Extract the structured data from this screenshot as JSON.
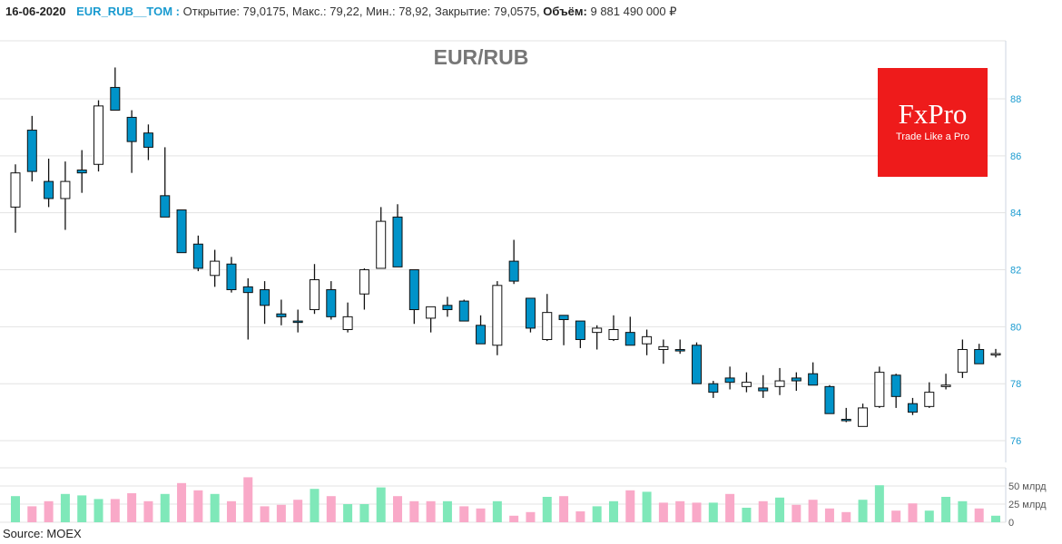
{
  "header": {
    "date": "16-06-2020",
    "symbol": "EUR_RUB__TOM :",
    "open_label": "Открытие:",
    "open": "79,0175,",
    "high_label": "Макс.:",
    "high": "79,22,",
    "low_label": "Мин.:",
    "low": "78,92,",
    "close_label": "Закрытие:",
    "close": "79,0575,",
    "volume_label": "Объём:",
    "volume": "9 881 490 000 ₽"
  },
  "logo": {
    "brand": "FxPro",
    "tagline": "Trade Like a Pro"
  },
  "source": "Source: MOEX",
  "colors": {
    "bear": "#0093c9",
    "bull": "#ffffff",
    "vol_up": "#7fe8b9",
    "vol_down": "#f9a9c8",
    "grid": "#e3e3e3",
    "axis_text": "#1a9bd0"
  },
  "chart_data": {
    "type": "candlestick",
    "title": "EUR/RUB",
    "ylim": [
      75.6,
      89.9
    ],
    "yticks": [
      {
        "v": 76,
        "label": "76"
      },
      {
        "v": 78,
        "label": "78"
      },
      {
        "v": 80,
        "label": "80"
      },
      {
        "v": 82,
        "label": "82"
      },
      {
        "v": 84,
        "label": "84"
      },
      {
        "v": 86,
        "label": "86"
      },
      {
        "v": 88,
        "label": "88"
      }
    ],
    "volume_ticks": [
      {
        "v": 0,
        "label": "0"
      },
      {
        "v": 25,
        "label": "25 млрд"
      },
      {
        "v": 50,
        "label": "50 млрд"
      }
    ],
    "volume_unit": "млрд",
    "ohlc": [
      [
        84.2,
        85.7,
        83.3,
        85.4
      ],
      [
        86.9,
        87.4,
        85.1,
        85.45
      ],
      [
        85.1,
        85.9,
        84.2,
        84.5
      ],
      [
        84.5,
        85.8,
        83.4,
        85.1
      ],
      [
        85.5,
        86.2,
        84.7,
        85.4
      ],
      [
        85.7,
        87.95,
        85.45,
        87.75
      ],
      [
        88.4,
        89.1,
        87.6,
        87.6
      ],
      [
        87.35,
        87.6,
        85.4,
        86.5
      ],
      [
        86.8,
        87.1,
        85.85,
        86.3
      ],
      [
        84.6,
        86.3,
        83.85,
        83.85
      ],
      [
        84.1,
        84.1,
        82.6,
        82.6
      ],
      [
        82.9,
        83.2,
        81.95,
        82.05
      ],
      [
        81.8,
        82.7,
        81.4,
        82.3
      ],
      [
        82.2,
        82.45,
        81.2,
        81.3
      ],
      [
        81.4,
        81.7,
        79.55,
        81.2
      ],
      [
        81.3,
        81.6,
        80.1,
        80.75
      ],
      [
        80.45,
        80.95,
        80.05,
        80.35
      ],
      [
        80.2,
        80.6,
        79.8,
        80.15
      ],
      [
        80.6,
        82.2,
        80.45,
        81.65
      ],
      [
        81.3,
        81.6,
        80.25,
        80.35
      ],
      [
        79.9,
        80.85,
        79.8,
        80.35
      ],
      [
        81.15,
        82.05,
        80.6,
        82.0
      ],
      [
        82.05,
        84.2,
        82.05,
        83.7
      ],
      [
        83.85,
        84.3,
        82.1,
        82.1
      ],
      [
        82.0,
        82.0,
        80.1,
        80.6
      ],
      [
        80.3,
        80.7,
        79.8,
        80.7
      ],
      [
        80.75,
        81.05,
        80.35,
        80.6
      ],
      [
        80.9,
        80.95,
        80.2,
        80.2
      ],
      [
        80.05,
        80.4,
        79.4,
        79.4
      ],
      [
        79.35,
        81.6,
        79.0,
        81.45
      ],
      [
        82.3,
        83.05,
        81.5,
        81.6
      ],
      [
        81.0,
        81.0,
        79.8,
        79.95
      ],
      [
        79.55,
        81.15,
        79.5,
        80.5
      ],
      [
        80.4,
        80.4,
        79.35,
        80.25
      ],
      [
        80.2,
        80.2,
        79.25,
        79.55
      ],
      [
        79.8,
        80.05,
        79.2,
        79.95
      ],
      [
        79.55,
        80.4,
        79.5,
        79.9
      ],
      [
        79.8,
        80.35,
        79.35,
        79.35
      ],
      [
        79.4,
        79.9,
        79.0,
        79.65
      ],
      [
        79.2,
        79.55,
        78.7,
        79.3
      ],
      [
        79.2,
        79.55,
        79.05,
        79.15
      ],
      [
        79.35,
        79.45,
        78.0,
        78.0
      ],
      [
        78.0,
        78.1,
        77.5,
        77.7
      ],
      [
        78.2,
        78.6,
        77.8,
        78.05
      ],
      [
        77.9,
        78.4,
        77.7,
        78.05
      ],
      [
        77.85,
        78.3,
        77.5,
        77.75
      ],
      [
        77.9,
        78.55,
        77.6,
        78.1
      ],
      [
        78.2,
        78.4,
        77.75,
        78.1
      ],
      [
        78.35,
        78.75,
        77.95,
        77.95
      ],
      [
        77.9,
        77.95,
        76.95,
        76.95
      ],
      [
        76.75,
        77.15,
        76.65,
        76.7
      ],
      [
        76.5,
        77.3,
        76.5,
        77.15
      ],
      [
        77.2,
        78.6,
        77.15,
        78.4
      ],
      [
        78.3,
        78.35,
        77.15,
        77.55
      ],
      [
        77.3,
        77.5,
        76.9,
        77.0
      ],
      [
        77.2,
        78.05,
        77.15,
        77.7
      ],
      [
        77.9,
        78.35,
        77.8,
        77.95
      ],
      [
        78.4,
        79.55,
        78.2,
        79.2
      ],
      [
        79.2,
        79.4,
        78.7,
        78.7
      ],
      [
        79.0175,
        79.22,
        78.92,
        79.0575
      ]
    ],
    "volume": [
      36,
      22,
      29,
      39,
      37,
      32,
      32,
      40,
      29,
      39,
      54,
      44,
      39,
      29,
      62,
      22,
      24,
      31,
      46,
      36,
      25,
      25,
      48,
      36,
      29,
      29,
      29,
      22,
      19,
      29,
      9,
      14,
      35,
      36,
      15,
      22,
      29,
      44,
      42,
      27,
      29,
      27,
      27,
      39,
      20,
      29,
      34,
      24,
      31,
      19,
      14,
      31,
      51,
      16,
      26,
      16,
      35,
      29,
      19,
      9
    ],
    "volume_color": [
      "g",
      "p",
      "p",
      "g",
      "g",
      "g",
      "p",
      "p",
      "p",
      "g",
      "p",
      "p",
      "g",
      "p",
      "p",
      "p",
      "p",
      "p",
      "g",
      "p",
      "g",
      "g",
      "g",
      "p",
      "p",
      "p",
      "g",
      "p",
      "p",
      "g",
      "p",
      "p",
      "g",
      "p",
      "p",
      "g",
      "g",
      "p",
      "g",
      "p",
      "p",
      "p",
      "g",
      "p",
      "g",
      "p",
      "g",
      "p",
      "p",
      "p",
      "p",
      "g",
      "g",
      "p",
      "p",
      "g",
      "g",
      "g",
      "p",
      "g"
    ]
  }
}
